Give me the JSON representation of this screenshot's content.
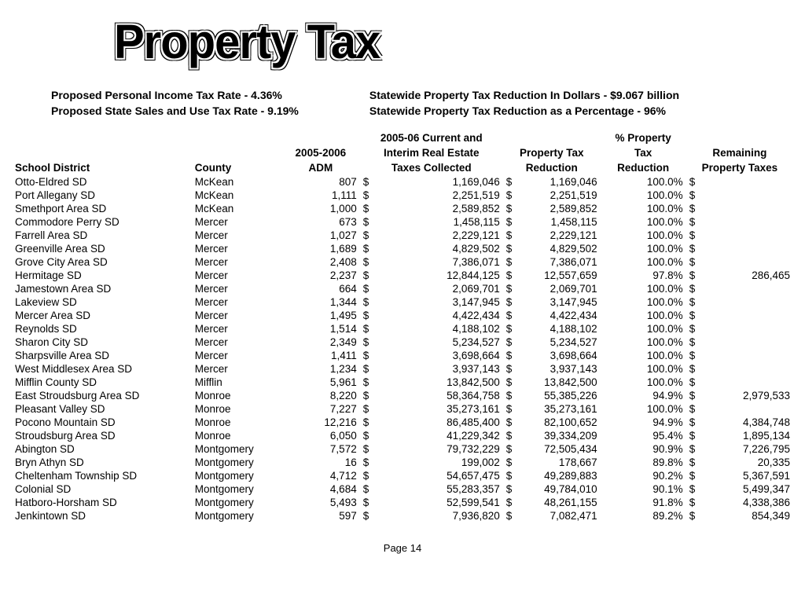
{
  "title": "Property Tax",
  "subhead": {
    "left_line1": "Proposed Personal Income Tax Rate - 4.36%",
    "left_line2": "Proposed State Sales and Use Tax Rate - 9.19%",
    "right_line1": "Statewide Property Tax Reduction In Dollars - $9.067 billion",
    "right_line2": "Statewide Property Tax Reduction as a Percentage - 96%"
  },
  "headers": {
    "c0": "School District",
    "c1": "County",
    "c2a": "2005-2006",
    "c2b": "ADM",
    "c3a": "2005-06 Current and",
    "c3b": "Interim Real Estate",
    "c3c": "Taxes Collected",
    "c4a": "Property Tax",
    "c4b": "Reduction",
    "c5a": "% Property",
    "c5b": "Tax",
    "c5c": "Reduction",
    "c6a": "Remaining",
    "c6b": "Property Taxes"
  },
  "rows": [
    {
      "d": "Otto-Eldred SD",
      "c": "McKean",
      "adm": "807",
      "col": "1,169,046",
      "red": "1,169,046",
      "pct": "100.0%",
      "rem": ""
    },
    {
      "d": "Port Allegany SD",
      "c": "McKean",
      "adm": "1,111",
      "col": "2,251,519",
      "red": "2,251,519",
      "pct": "100.0%",
      "rem": ""
    },
    {
      "d": "Smethport Area SD",
      "c": "McKean",
      "adm": "1,000",
      "col": "2,589,852",
      "red": "2,589,852",
      "pct": "100.0%",
      "rem": ""
    },
    {
      "d": "Commodore Perry SD",
      "c": "Mercer",
      "adm": "673",
      "col": "1,458,115",
      "red": "1,458,115",
      "pct": "100.0%",
      "rem": ""
    },
    {
      "d": "Farrell Area SD",
      "c": "Mercer",
      "adm": "1,027",
      "col": "2,229,121",
      "red": "2,229,121",
      "pct": "100.0%",
      "rem": ""
    },
    {
      "d": "Greenville Area SD",
      "c": "Mercer",
      "adm": "1,689",
      "col": "4,829,502",
      "red": "4,829,502",
      "pct": "100.0%",
      "rem": ""
    },
    {
      "d": "Grove City Area SD",
      "c": "Mercer",
      "adm": "2,408",
      "col": "7,386,071",
      "red": "7,386,071",
      "pct": "100.0%",
      "rem": ""
    },
    {
      "d": "Hermitage SD",
      "c": "Mercer",
      "adm": "2,237",
      "col": "12,844,125",
      "red": "12,557,659",
      "pct": "97.8%",
      "rem": "286,465"
    },
    {
      "d": "Jamestown Area SD",
      "c": "Mercer",
      "adm": "664",
      "col": "2,069,701",
      "red": "2,069,701",
      "pct": "100.0%",
      "rem": ""
    },
    {
      "d": "Lakeview SD",
      "c": "Mercer",
      "adm": "1,344",
      "col": "3,147,945",
      "red": "3,147,945",
      "pct": "100.0%",
      "rem": ""
    },
    {
      "d": "Mercer Area SD",
      "c": "Mercer",
      "adm": "1,495",
      "col": "4,422,434",
      "red": "4,422,434",
      "pct": "100.0%",
      "rem": ""
    },
    {
      "d": "Reynolds SD",
      "c": "Mercer",
      "adm": "1,514",
      "col": "4,188,102",
      "red": "4,188,102",
      "pct": "100.0%",
      "rem": ""
    },
    {
      "d": "Sharon City SD",
      "c": "Mercer",
      "adm": "2,349",
      "col": "5,234,527",
      "red": "5,234,527",
      "pct": "100.0%",
      "rem": ""
    },
    {
      "d": "Sharpsville Area SD",
      "c": "Mercer",
      "adm": "1,411",
      "col": "3,698,664",
      "red": "3,698,664",
      "pct": "100.0%",
      "rem": ""
    },
    {
      "d": "West Middlesex Area SD",
      "c": "Mercer",
      "adm": "1,234",
      "col": "3,937,143",
      "red": "3,937,143",
      "pct": "100.0%",
      "rem": ""
    },
    {
      "d": "Mifflin County SD",
      "c": "Mifflin",
      "adm": "5,961",
      "col": "13,842,500",
      "red": "13,842,500",
      "pct": "100.0%",
      "rem": ""
    },
    {
      "d": "East Stroudsburg Area SD",
      "c": "Monroe",
      "adm": "8,220",
      "col": "58,364,758",
      "red": "55,385,226",
      "pct": "94.9%",
      "rem": "2,979,533"
    },
    {
      "d": "Pleasant Valley SD",
      "c": "Monroe",
      "adm": "7,227",
      "col": "35,273,161",
      "red": "35,273,161",
      "pct": "100.0%",
      "rem": ""
    },
    {
      "d": "Pocono Mountain SD",
      "c": "Monroe",
      "adm": "12,216",
      "col": "86,485,400",
      "red": "82,100,652",
      "pct": "94.9%",
      "rem": "4,384,748"
    },
    {
      "d": "Stroudsburg Area SD",
      "c": "Monroe",
      "adm": "6,050",
      "col": "41,229,342",
      "red": "39,334,209",
      "pct": "95.4%",
      "rem": "1,895,134"
    },
    {
      "d": "Abington SD",
      "c": "Montgomery",
      "adm": "7,572",
      "col": "79,732,229",
      "red": "72,505,434",
      "pct": "90.9%",
      "rem": "7,226,795"
    },
    {
      "d": "Bryn Athyn SD",
      "c": "Montgomery",
      "adm": "16",
      "col": "199,002",
      "red": "178,667",
      "pct": "89.8%",
      "rem": "20,335"
    },
    {
      "d": "Cheltenham Township SD",
      "c": "Montgomery",
      "adm": "4,712",
      "col": "54,657,475",
      "red": "49,289,883",
      "pct": "90.2%",
      "rem": "5,367,591"
    },
    {
      "d": "Colonial SD",
      "c": "Montgomery",
      "adm": "4,684",
      "col": "55,283,357",
      "red": "49,784,010",
      "pct": "90.1%",
      "rem": "5,499,347"
    },
    {
      "d": "Hatboro-Horsham SD",
      "c": "Montgomery",
      "adm": "5,493",
      "col": "52,599,541",
      "red": "48,261,155",
      "pct": "91.8%",
      "rem": "4,338,386"
    },
    {
      "d": "Jenkintown SD",
      "c": "Montgomery",
      "adm": "597",
      "col": "7,936,820",
      "red": "7,082,471",
      "pct": "89.2%",
      "rem": "854,349"
    }
  ],
  "footer": "Page 14",
  "dollar": "$"
}
